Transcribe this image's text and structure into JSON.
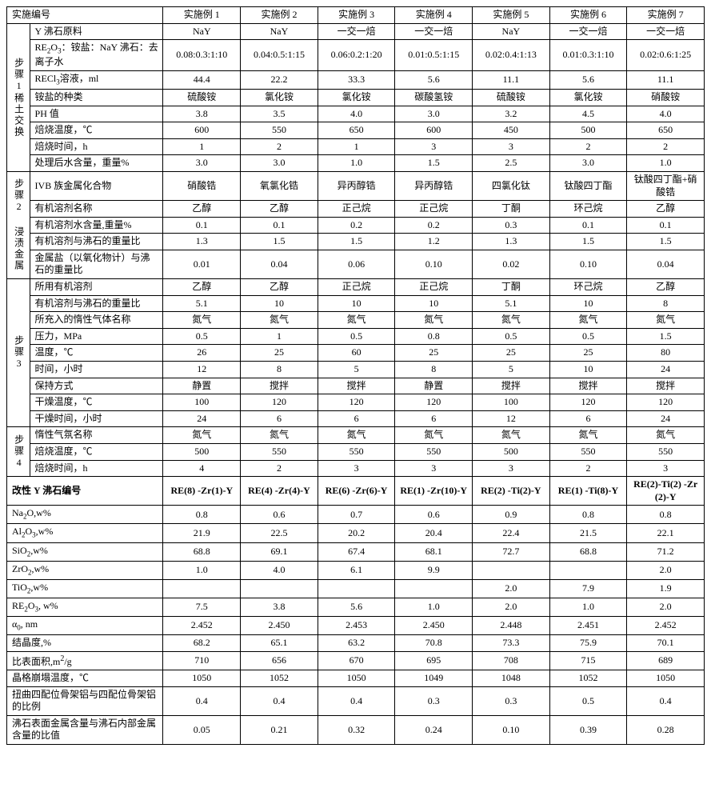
{
  "header": [
    "实施编号",
    "实施例 1",
    "实施例 2",
    "实施例 3",
    "实施例 4",
    "实施例 5",
    "实施例 6",
    "实施例 7"
  ],
  "sections": {
    "s1": {
      "title": "步骤1稀土交换",
      "rows": [
        [
          "Y 沸石原料",
          "NaY",
          "NaY",
          "一交一焙",
          "一交一焙",
          "NaY",
          "一交一焙",
          "一交一焙"
        ],
        [
          "RE₂O₃：铵盐：NaY 沸石：去离子水",
          "0.08:0.3:1:10",
          "0.04:0.5:1:15",
          "0.06:0.2:1:20",
          "0.01:0.5:1:15",
          "0.02:0.4:1:13",
          "0.01:0.3:1:10",
          "0.02:0.6:1:25"
        ],
        [
          "RECl₃溶液，ml",
          "44.4",
          "22.2",
          "33.3",
          "5.6",
          "11.1",
          "5.6",
          "11.1"
        ],
        [
          "铵盐的种类",
          "硫酸铵",
          "氯化铵",
          "氯化铵",
          "碳酸氢铵",
          "硫酸铵",
          "氯化铵",
          "硝酸铵"
        ],
        [
          "PH 值",
          "3.8",
          "3.5",
          "4.0",
          "3.0",
          "3.2",
          "4.5",
          "4.0"
        ],
        [
          "焙烧温度，℃",
          "600",
          "550",
          "650",
          "600",
          "450",
          "500",
          "650"
        ],
        [
          "焙烧时间，h",
          "1",
          "2",
          "1",
          "3",
          "3",
          "2",
          "2"
        ],
        [
          "处理后水含量，重量%",
          "3.0",
          "3.0",
          "1.0",
          "1.5",
          "2.5",
          "3.0",
          "1.0"
        ]
      ]
    },
    "s2": {
      "title": "步骤2 浸渍金属",
      "rows": [
        [
          "IVB 族金属化合物",
          "硝酸锆",
          "氧氯化锆",
          "异丙醇锆",
          "异丙醇锆",
          "四氯化钛",
          "钛酸四丁酯",
          "钛酸四丁酯+硝酸锆"
        ],
        [
          "有机溶剂名称",
          "乙醇",
          "乙醇",
          "正己烷",
          "正己烷",
          "丁酮",
          "环己烷",
          "乙醇"
        ],
        [
          "有机溶剂水含量,重量%",
          "0.1",
          "0.1",
          "0.2",
          "0.2",
          "0.3",
          "0.1",
          "0.1"
        ],
        [
          "有机溶剂与沸石的重量比",
          "1.3",
          "1.5",
          "1.5",
          "1.2",
          "1.3",
          "1.5",
          "1.5"
        ],
        [
          "金属盐（以氧化物计）与沸石的重量比",
          "0.01",
          "0.04",
          "0.06",
          "0.10",
          "0.02",
          "0.10",
          "0.04"
        ]
      ]
    },
    "s3": {
      "title": "步骤3",
      "rows": [
        [
          "所用有机溶剂",
          "乙醇",
          "乙醇",
          "正己烷",
          "正己烷",
          "丁酮",
          "环己烷",
          "乙醇"
        ],
        [
          "有机溶剂与沸石的重量比",
          "5.1",
          "10",
          "10",
          "10",
          "5.1",
          "10",
          "8"
        ],
        [
          "所充入的惰性气体名称",
          "氮气",
          "氮气",
          "氮气",
          "氮气",
          "氮气",
          "氮气",
          "氮气"
        ],
        [
          "压力，MPa",
          "0.5",
          "1",
          "0.5",
          "0.8",
          "0.5",
          "0.5",
          "1.5"
        ],
        [
          "温度，℃",
          "26",
          "25",
          "60",
          "25",
          "25",
          "25",
          "80"
        ],
        [
          "时间，小时",
          "12",
          "8",
          "5",
          "8",
          "5",
          "10",
          "24"
        ],
        [
          "保持方式",
          "静置",
          "搅拌",
          "搅拌",
          "静置",
          "搅拌",
          "搅拌",
          "搅拌"
        ],
        [
          "干燥温度，℃",
          "100",
          "120",
          "120",
          "120",
          "100",
          "120",
          "120"
        ],
        [
          "干燥时间，小时",
          "24",
          "6",
          "6",
          "6",
          "12",
          "6",
          "24"
        ]
      ]
    },
    "s4": {
      "title": "步骤4",
      "rows": [
        [
          "惰性气氛名称",
          "氮气",
          "氮气",
          "氮气",
          "氮气",
          "氮气",
          "氮气",
          "氮气"
        ],
        [
          "焙烧温度，℃",
          "500",
          "550",
          "550",
          "550",
          "500",
          "550",
          "550"
        ],
        [
          "焙烧时间，h",
          "4",
          "2",
          "3",
          "3",
          "3",
          "2",
          "3"
        ]
      ]
    }
  },
  "bottom": [
    {
      "label": "改性 Y 沸石编号",
      "bold": true,
      "vals": [
        "RE(8) -Zr(1)-Y",
        "RE(4) -Zr(4)-Y",
        "RE(6) -Zr(6)-Y",
        "RE(1) -Zr(10)-Y",
        "RE(2) -Ti(2)-Y",
        "RE(1) -Ti(8)-Y",
        "RE(2)-Ti(2) -Zr(2)-Y"
      ]
    },
    {
      "label": "Na₂O,w%",
      "vals": [
        "0.8",
        "0.6",
        "0.7",
        "0.6",
        "0.9",
        "0.8",
        "0.8"
      ]
    },
    {
      "label": "Al₂O₃,w%",
      "vals": [
        "21.9",
        "22.5",
        "20.2",
        "20.4",
        "22.4",
        "21.5",
        "22.1"
      ]
    },
    {
      "label": "SiO₂,w%",
      "vals": [
        "68.8",
        "69.1",
        "67.4",
        "68.1",
        "72.7",
        "68.8",
        "71.2"
      ]
    },
    {
      "label": "ZrO₂,w%",
      "vals": [
        "1.0",
        "4.0",
        "6.1",
        "9.9",
        "",
        "",
        "2.0"
      ]
    },
    {
      "label": "TiO₂,w%",
      "vals": [
        "",
        "",
        "",
        "",
        "2.0",
        "7.9",
        "1.9"
      ]
    },
    {
      "label": "RE₂O₃, w%",
      "vals": [
        "7.5",
        "3.8",
        "5.6",
        "1.0",
        "2.0",
        "1.0",
        "2.0"
      ]
    },
    {
      "label": "α₀, nm",
      "vals": [
        "2.452",
        "2.450",
        "2.453",
        "2.450",
        "2.448",
        "2.451",
        "2.452"
      ]
    },
    {
      "label": "结晶度,%",
      "vals": [
        "68.2",
        "65.1",
        "63.2",
        "70.8",
        "73.3",
        "75.9",
        "70.1"
      ]
    },
    {
      "label": "比表面积,m²/g",
      "vals": [
        "710",
        "656",
        "670",
        "695",
        "708",
        "715",
        "689"
      ]
    },
    {
      "label": "晶格崩塌温度，℃",
      "vals": [
        "1050",
        "1052",
        "1050",
        "1049",
        "1048",
        "1052",
        "1050"
      ]
    },
    {
      "label": "扭曲四配位骨架铝与四配位骨架铝的比例",
      "vals": [
        "0.4",
        "0.4",
        "0.4",
        "0.3",
        "0.3",
        "0.5",
        "0.4"
      ]
    },
    {
      "label": "沸石表面金属含量与沸石内部金属含量的比值",
      "vals": [
        "0.05",
        "0.21",
        "0.32",
        "0.24",
        "0.10",
        "0.39",
        "0.28"
      ]
    }
  ]
}
